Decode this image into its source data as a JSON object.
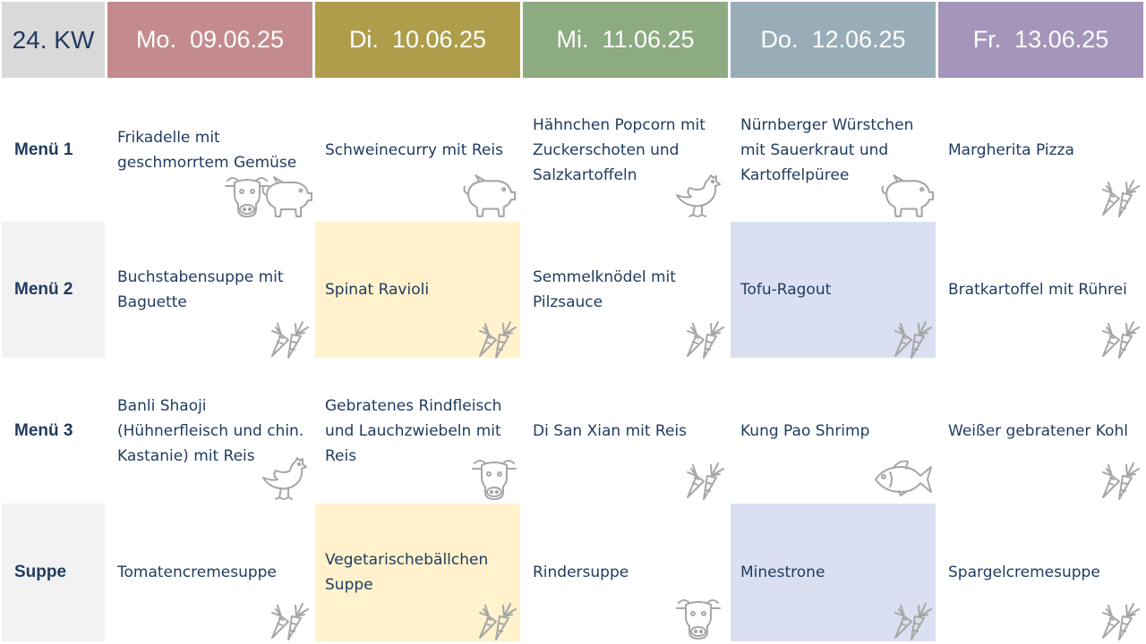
{
  "header": {
    "week": "24. KW",
    "days": [
      "Mo.  09.06.25",
      "Di.  10.06.25",
      "Mi.  11.06.25",
      "Do.  12.06.25",
      "Fr.  13.06.25"
    ],
    "day_colors": [
      "#c48b8e",
      "#ae9e4c",
      "#8cab82",
      "#99adb8",
      "#a595bb"
    ]
  },
  "rows": [
    {
      "label": "Menü 1",
      "dishes": [
        "Frikadelle mit geschmorrtem Gemüse",
        "Schweinecurry mit Reis",
        "Hähnchen Popcorn mit Zuckerschoten und Salzkartoffeln",
        "Nürnberger Würstchen mit Sauerkraut und Kartoffelpüree",
        "Margherita Pizza"
      ],
      "icons": [
        "cow-pig",
        "pig",
        "chicken",
        "pig",
        "carrot"
      ]
    },
    {
      "label": "Menü 2",
      "dishes": [
        "Buchstabensuppe mit Baguette",
        "Spinat Ravioli",
        "Semmelknödel mit Pilzsauce",
        "Tofu-Ragout",
        "Bratkartoffel mit Rührei"
      ],
      "icons": [
        "carrot",
        "carrot",
        "carrot",
        "carrot",
        "carrot"
      ]
    },
    {
      "label": "Menü 3",
      "dishes": [
        "Banli Shaoji (Hühnerfleisch und chin. Kastanie) mit Reis",
        "Gebratenes Rindfleisch und Lauchzwiebeln mit Reis",
        "Di San Xian mit Reis",
        "Kung Pao Shrimp",
        "Weißer gebratener Kohl"
      ],
      "icons": [
        "chicken",
        "cow",
        "carrot",
        "fish",
        "carrot"
      ]
    },
    {
      "label": "Suppe",
      "dishes": [
        "Tomatencremesuppe",
        "Vegetarischebällchen Suppe",
        "Rindersuppe",
        "Minestrone",
        "Spargelcremesuppe"
      ],
      "icons": [
        "carrot",
        "carrot",
        "cow",
        "carrot",
        "carrot"
      ]
    }
  ],
  "colors": {
    "label_bg_alt": "#f2f2f2",
    "highlight_yellow": "#fff2cc",
    "highlight_blue": "#dae0f1",
    "icon_gray": "#a6a6a6"
  }
}
